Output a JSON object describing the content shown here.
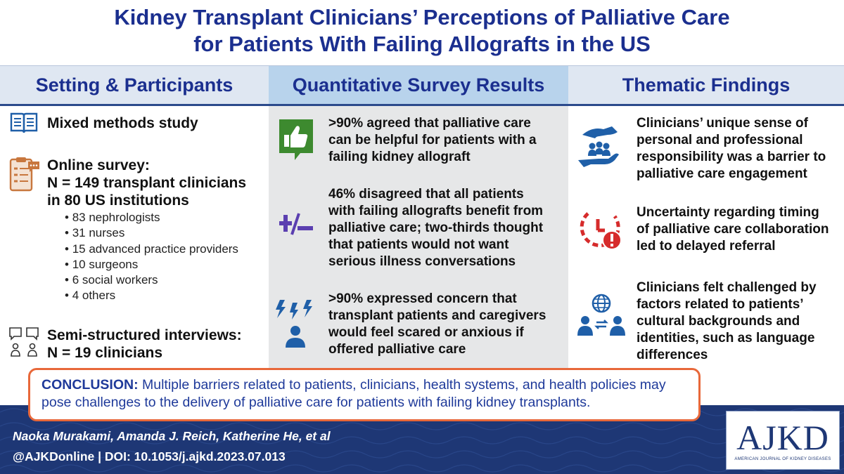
{
  "title": {
    "line1": "Kidney Transplant Clinicians’ Perceptions of Palliative Care",
    "line2": "for Patients With Failing Allografts in the US"
  },
  "columns": {
    "left_heading": "Setting & Participants",
    "mid_heading": "Quantitative Survey Results",
    "right_heading": "Thematic Findings"
  },
  "setting": {
    "study_type": "Mixed methods study",
    "survey_line1": "Online survey:",
    "survey_line2": "N = 149 transplant clinicians",
    "survey_line3": "in 80 US institutions",
    "breakdown": [
      "83 nephrologists",
      "31 nurses",
      "15 advanced practice providers",
      "10 surgeons",
      "6 social workers",
      "4 others"
    ],
    "interviews_line1": "Semi-structured interviews:",
    "interviews_line2": "N = 19 clinicians"
  },
  "survey_results": [
    {
      "icon": "thumbs-up-icon",
      "lines": [
        ">90% agreed that palliative care",
        "can be helpful for patients with a",
        "failing kidney allograft"
      ]
    },
    {
      "icon": "plus-minus-icon",
      "lines": [
        "46% disagreed that all patients",
        "with failing allografts benefit from",
        "palliative care; two-thirds thought",
        "that patients would not want",
        "serious illness conversations"
      ]
    },
    {
      "icon": "anxious-person-icon",
      "lines": [
        ">90% expressed concern that",
        "transplant patients and caregivers",
        "would feel scared or anxious if",
        "offered palliative care"
      ]
    }
  ],
  "themes": [
    {
      "icon": "caring-hands-icon",
      "lines": [
        "Clinicians’ unique sense of",
        "personal and professional",
        "responsibility was a barrier to",
        "palliative care engagement"
      ]
    },
    {
      "icon": "clock-alert-icon",
      "lines": [
        "Uncertainty regarding timing",
        "of palliative care collaboration",
        "led to delayed referral"
      ]
    },
    {
      "icon": "globe-people-icon",
      "lines": [
        "Clinicians felt challenged by",
        "factors related to patients’",
        "cultural backgrounds and",
        "identities, such as language",
        "differences"
      ]
    }
  ],
  "conclusion": {
    "label": "CONCLUSION:",
    "text": " Multiple barriers related to patients, clinicians, health systems, and health policies may pose challenges to the delivery of palliative care for patients with failing kidney transplants."
  },
  "footer": {
    "authors": "Naoka Murakami, Amanda J. Reich, Katherine He, et al",
    "doi": "@AJKDonline | DOI: 10.1053/j.ajkd.2023.07.013"
  },
  "logo": {
    "mark": "AJKD",
    "subtitle": "AMERICAN JOURNAL OF KIDNEY DISEASES"
  },
  "colors": {
    "title_blue": "#1b2f8f",
    "footer_navy": "#1e3775",
    "icon_blue": "#1f5fa8",
    "thumbs_green": "#3d8a2f",
    "alert_red": "#d62b2b",
    "conclusion_border": "#e8683a"
  }
}
